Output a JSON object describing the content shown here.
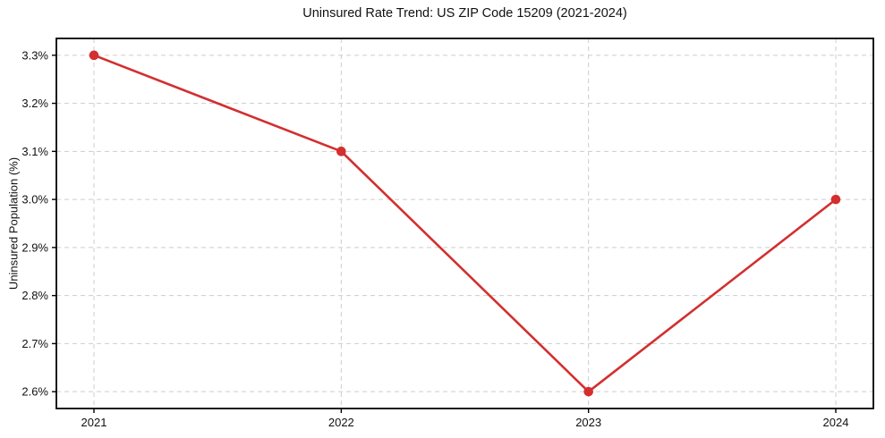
{
  "chart_data": {
    "type": "line",
    "title": "Uninsured Rate Trend: US ZIP Code 15209 (2021-2024)",
    "xlabel": "",
    "ylabel": "Uninsured Population (%)",
    "x": [
      "2021",
      "2022",
      "2023",
      "2024"
    ],
    "series": [
      {
        "name": "uninsured-rate",
        "values": [
          3.3,
          3.1,
          2.6,
          3.0
        ],
        "color": "#d32f2f",
        "marker": "circle",
        "marker_radius": 5.3,
        "line_width": 2.6
      }
    ],
    "yticks": [
      2.6,
      2.7,
      2.8,
      2.9,
      3.0,
      3.1,
      3.2,
      3.3
    ],
    "ytick_labels": [
      "2.6%",
      "2.7%",
      "2.8%",
      "2.9%",
      "3.0%",
      "3.1%",
      "3.2%",
      "3.3%"
    ],
    "ylim": [
      2.565,
      3.335
    ],
    "xlim_padding": 0.046,
    "grid": true,
    "grid_color": "#cdcdcd",
    "spine_color": "#000000",
    "tick_color": "#000000",
    "background": "#ffffff",
    "legend": "none"
  }
}
